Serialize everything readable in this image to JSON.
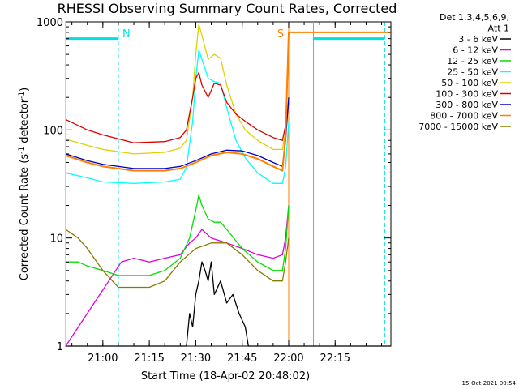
{
  "chart_data": {
    "type": "line",
    "title": "RHESSI Observing Summary Count Rates, Corrected",
    "xlabel": "Start Time (18-Apr-02 20:48:02)",
    "ylabel_main": "Corrected Count Rate (s",
    "ylabel_sup1": "-1",
    "ylabel_mid": " detector",
    "ylabel_sup2": "-1",
    "ylabel_end": ")",
    "yscale": "log",
    "ylim": [
      1,
      1000
    ],
    "xlim": [
      "20:48",
      "22:33"
    ],
    "xticks": [
      "21:00",
      "21:15",
      "21:30",
      "21:45",
      "22:00",
      "22:15"
    ],
    "yticks": [
      {
        "value": 1,
        "label": "1"
      },
      {
        "value": 10,
        "label": "10"
      },
      {
        "value": 100,
        "label": "100"
      },
      {
        "value": 1000,
        "label": "1000"
      }
    ],
    "legend_title_lines": [
      "Det 1,3,4,5,6,9,",
      "Att 1"
    ],
    "legend_placement": "right",
    "series": [
      {
        "name": "3 - 6 keV",
        "color": "#000000",
        "points": [
          [
            "20:48",
            1
          ],
          [
            "21:27",
            1
          ],
          [
            "21:28",
            2
          ],
          [
            "21:29",
            1.5
          ],
          [
            "21:30",
            3
          ],
          [
            "21:31",
            4
          ],
          [
            "21:32",
            6
          ],
          [
            "21:33",
            5
          ],
          [
            "21:34",
            4
          ],
          [
            "21:35",
            6
          ],
          [
            "21:36",
            3
          ],
          [
            "21:38",
            4
          ],
          [
            "21:40",
            2.5
          ],
          [
            "21:42",
            3
          ],
          [
            "21:44",
            2
          ],
          [
            "21:46",
            1.5
          ],
          [
            "21:47",
            1
          ],
          [
            "22:33",
            1
          ]
        ]
      },
      {
        "name": "6 - 12 keV",
        "color": "#e000e0",
        "points": [
          [
            "20:48",
            1
          ],
          [
            "21:06",
            6
          ],
          [
            "21:10",
            6.5
          ],
          [
            "21:15",
            6
          ],
          [
            "21:20",
            6.5
          ],
          [
            "21:25",
            7
          ],
          [
            "21:28",
            9
          ],
          [
            "21:30",
            10
          ],
          [
            "21:32",
            12
          ],
          [
            "21:35",
            10
          ],
          [
            "21:40",
            9
          ],
          [
            "21:45",
            8
          ],
          [
            "21:50",
            7
          ],
          [
            "21:55",
            6.5
          ],
          [
            "21:58",
            7
          ],
          [
            "21:59",
            10
          ],
          [
            "22:00",
            20
          ]
        ]
      },
      {
        "name": "12 - 25 keV",
        "color": "#00e000",
        "points": [
          [
            "20:48",
            6
          ],
          [
            "20:52",
            6
          ],
          [
            "20:55",
            5.5
          ],
          [
            "21:00",
            5
          ],
          [
            "21:05",
            4.5
          ],
          [
            "21:10",
            4.5
          ],
          [
            "21:15",
            4.5
          ],
          [
            "21:20",
            5
          ],
          [
            "21:25",
            6.5
          ],
          [
            "21:28",
            10
          ],
          [
            "21:30",
            18
          ],
          [
            "21:31",
            25
          ],
          [
            "21:32",
            20
          ],
          [
            "21:34",
            15
          ],
          [
            "21:36",
            14
          ],
          [
            "21:38",
            14
          ],
          [
            "21:40",
            12
          ],
          [
            "21:45",
            8
          ],
          [
            "21:50",
            6
          ],
          [
            "21:55",
            5
          ],
          [
            "21:58",
            5
          ],
          [
            "21:59",
            8
          ],
          [
            "22:00",
            20
          ]
        ]
      },
      {
        "name": "25 - 50 keV",
        "color": "#00ffff",
        "points": [
          [
            "20:48",
            40
          ],
          [
            "20:55",
            36
          ],
          [
            "21:00",
            33
          ],
          [
            "21:10",
            32
          ],
          [
            "21:20",
            33
          ],
          [
            "21:25",
            35
          ],
          [
            "21:27",
            45
          ],
          [
            "21:29",
            120
          ],
          [
            "21:30",
            300
          ],
          [
            "21:31",
            550
          ],
          [
            "21:32",
            450
          ],
          [
            "21:34",
            300
          ],
          [
            "21:36",
            280
          ],
          [
            "21:38",
            270
          ],
          [
            "21:40",
            160
          ],
          [
            "21:43",
            80
          ],
          [
            "21:46",
            55
          ],
          [
            "21:50",
            40
          ],
          [
            "21:55",
            32
          ],
          [
            "21:58",
            32
          ],
          [
            "21:59",
            45
          ],
          [
            "22:00",
            120
          ]
        ]
      },
      {
        "name": "50 - 100 keV",
        "color": "#e0d000",
        "points": [
          [
            "20:48",
            82
          ],
          [
            "20:55",
            72
          ],
          [
            "21:00",
            66
          ],
          [
            "21:10",
            60
          ],
          [
            "21:20",
            62
          ],
          [
            "21:25",
            68
          ],
          [
            "21:27",
            80
          ],
          [
            "21:29",
            200
          ],
          [
            "21:30",
            500
          ],
          [
            "21:31",
            950
          ],
          [
            "21:32",
            750
          ],
          [
            "21:34",
            450
          ],
          [
            "21:36",
            500
          ],
          [
            "21:38",
            460
          ],
          [
            "21:40",
            260
          ],
          [
            "21:43",
            140
          ],
          [
            "21:46",
            100
          ],
          [
            "21:50",
            80
          ],
          [
            "21:55",
            66
          ],
          [
            "21:58",
            66
          ],
          [
            "21:59",
            100
          ],
          [
            "22:00",
            200
          ]
        ]
      },
      {
        "name": "100 - 300 keV",
        "color": "#e00000",
        "points": [
          [
            "20:48",
            125
          ],
          [
            "20:55",
            100
          ],
          [
            "21:00",
            90
          ],
          [
            "21:10",
            76
          ],
          [
            "21:20",
            78
          ],
          [
            "21:25",
            85
          ],
          [
            "21:27",
            100
          ],
          [
            "21:29",
            200
          ],
          [
            "21:30",
            300
          ],
          [
            "21:31",
            340
          ],
          [
            "21:32",
            260
          ],
          [
            "21:34",
            200
          ],
          [
            "21:36",
            270
          ],
          [
            "21:38",
            260
          ],
          [
            "21:40",
            180
          ],
          [
            "21:43",
            140
          ],
          [
            "21:46",
            120
          ],
          [
            "21:50",
            100
          ],
          [
            "21:55",
            85
          ],
          [
            "21:58",
            80
          ],
          [
            "21:59",
            110
          ],
          [
            "22:00",
            180
          ]
        ]
      },
      {
        "name": "300 - 800 keV",
        "color": "#0000c0",
        "points": [
          [
            "20:48",
            60
          ],
          [
            "20:55",
            52
          ],
          [
            "21:00",
            48
          ],
          [
            "21:10",
            44
          ],
          [
            "21:20",
            44
          ],
          [
            "21:25",
            46
          ],
          [
            "21:30",
            52
          ],
          [
            "21:35",
            60
          ],
          [
            "21:40",
            65
          ],
          [
            "21:45",
            64
          ],
          [
            "21:50",
            58
          ],
          [
            "21:55",
            50
          ],
          [
            "21:58",
            46
          ],
          [
            "21:59",
            80
          ],
          [
            "22:00",
            200
          ]
        ]
      },
      {
        "name": "800 - 7000 keV",
        "color": "#ff8000",
        "points": [
          [
            "20:48",
            58
          ],
          [
            "20:55",
            50
          ],
          [
            "21:00",
            46
          ],
          [
            "21:10",
            42
          ],
          [
            "21:20",
            42
          ],
          [
            "21:25",
            44
          ],
          [
            "21:30",
            50
          ],
          [
            "21:35",
            58
          ],
          [
            "21:40",
            62
          ],
          [
            "21:45",
            60
          ],
          [
            "21:50",
            54
          ],
          [
            "21:55",
            46
          ],
          [
            "21:58",
            42
          ],
          [
            "21:59",
            90
          ],
          [
            "22:00",
            800
          ],
          [
            "22:33",
            800
          ]
        ]
      },
      {
        "name": "7000 - 15000 keV",
        "color": "#8b7a00",
        "points": [
          [
            "20:48",
            12
          ],
          [
            "20:52",
            10
          ],
          [
            "20:55",
            8
          ],
          [
            "21:00",
            5
          ],
          [
            "21:05",
            3.5
          ],
          [
            "21:10",
            3.5
          ],
          [
            "21:15",
            3.5
          ],
          [
            "21:20",
            4
          ],
          [
            "21:25",
            6
          ],
          [
            "21:30",
            8
          ],
          [
            "21:35",
            9
          ],
          [
            "21:40",
            9
          ],
          [
            "21:45",
            7
          ],
          [
            "21:50",
            5
          ],
          [
            "21:55",
            4
          ],
          [
            "21:58",
            4
          ],
          [
            "21:59",
            6
          ],
          [
            "22:00",
            10
          ]
        ]
      }
    ],
    "markers": [
      {
        "label": "N",
        "color": "#00e0e0",
        "vlines": [
          "20:48",
          "21:05"
        ],
        "bar": {
          "from": "20:48",
          "to": "21:05",
          "y": 700
        }
      },
      {
        "label": "S",
        "color": "#ff8000",
        "vlines": [
          "22:00"
        ],
        "bar": null
      },
      {
        "label": "",
        "color": "#00e0e0",
        "vlines": [
          "22:08",
          "22:31"
        ],
        "bar": {
          "from": "22:08",
          "to": "22:31",
          "y": 700
        }
      }
    ],
    "timestamp": "15-Oct-2021 00:54"
  }
}
